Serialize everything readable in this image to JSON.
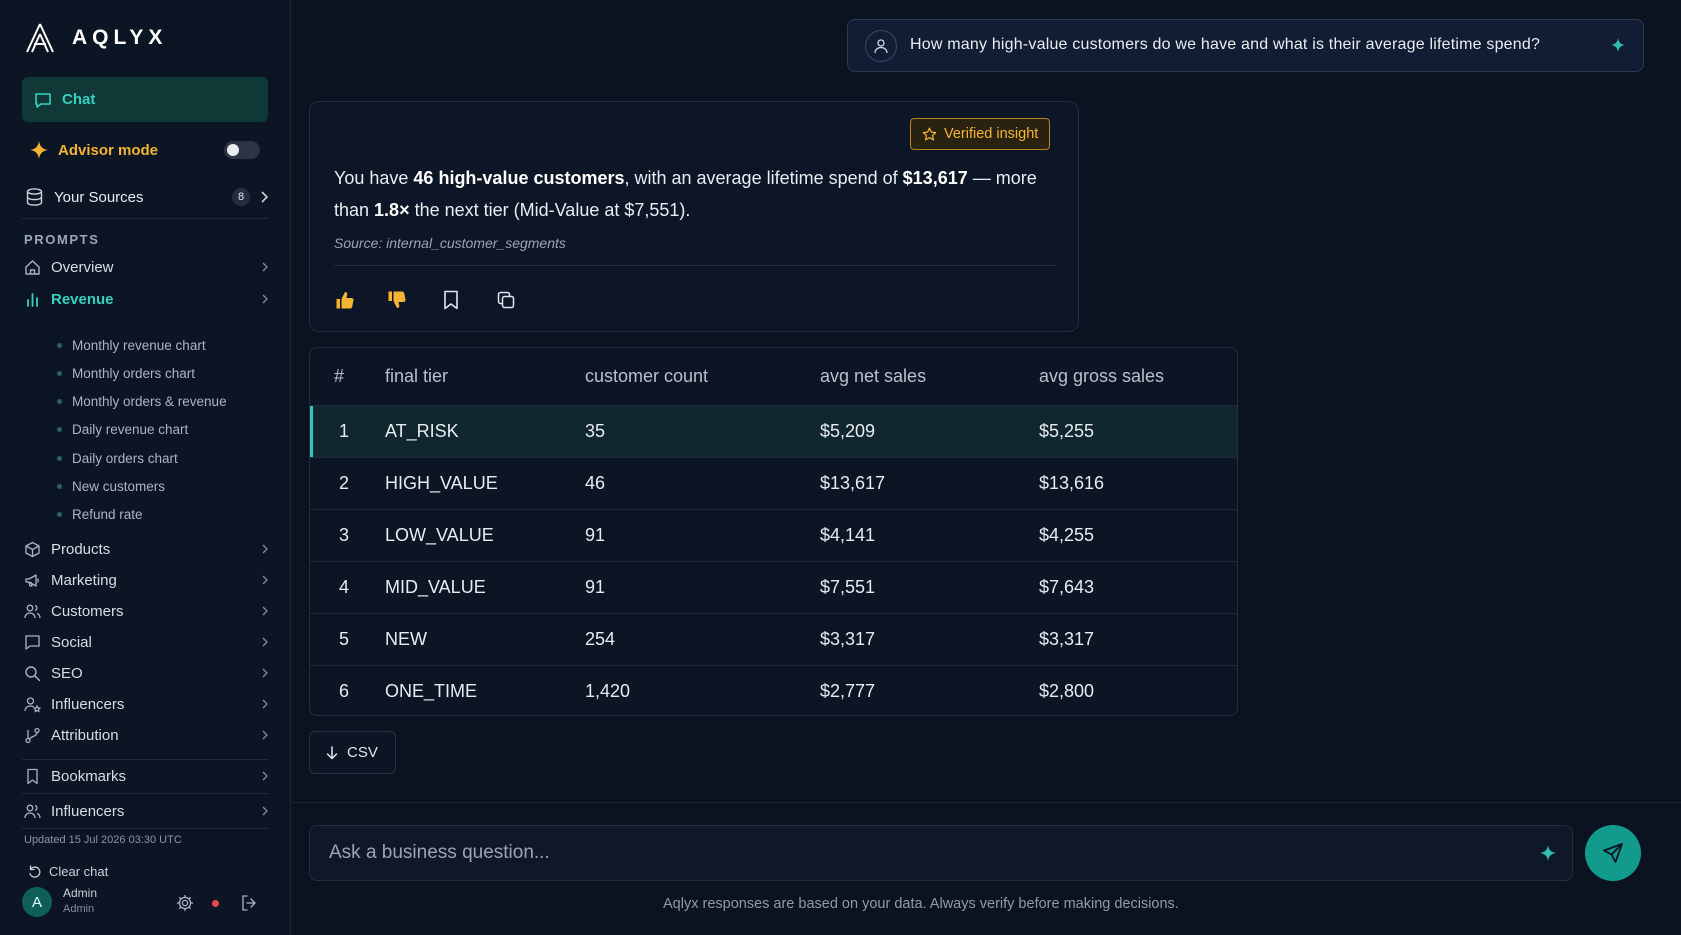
{
  "brand": {
    "name": "AQLYX"
  },
  "colors": {
    "accent": "#37d1c0",
    "advisor": "#f6b331",
    "verified": "#f2b534",
    "send": "#129a8c"
  },
  "sidebar": {
    "chat_label": "Chat",
    "advisor_label": "Advisor mode",
    "advisor_on": false,
    "sources_label": "Your Sources",
    "sources_count": "8",
    "prompts_title": "PROMPTS",
    "nav": [
      {
        "label": "Overview",
        "icon": "home-icon"
      },
      {
        "label": "Revenue",
        "icon": "bar-chart-icon"
      },
      {
        "label": "Products",
        "icon": "box-icon"
      },
      {
        "label": "Marketing",
        "icon": "megaphone-icon"
      },
      {
        "label": "Customers",
        "icon": "users-icon"
      },
      {
        "label": "Social",
        "icon": "message-square-icon"
      },
      {
        "label": "SEO",
        "icon": "search-icon"
      },
      {
        "label": "Influencers",
        "icon": "user-star-icon"
      },
      {
        "label": "Attribution",
        "icon": "branch-icon"
      }
    ],
    "revenue_sub": [
      "Monthly revenue chart",
      "Monthly orders chart",
      "Monthly orders & revenue",
      "Daily revenue chart",
      "Daily orders chart",
      "New customers",
      "Refund rate"
    ],
    "bookmarks_label": "Bookmarks",
    "influencers2_label": "Influencers",
    "updated": "Updated 15 Jul 2026 03:30 UTC",
    "clear_chat": "Clear chat",
    "user": {
      "initial": "A",
      "name": "Admin",
      "role": "Admin"
    }
  },
  "question": {
    "text": "How many high-value customers do we have and what is their average lifetime spend?"
  },
  "answer": {
    "verified_label": "Verified insight",
    "t1": "You have ",
    "b1": "46 high-value customers",
    "t2": ", with an average lifetime spend of ",
    "b2": "$13,617",
    "t3": " — more than ",
    "b3": "1.8×",
    "t4": " the next tier (Mid-Value at $7,551).",
    "source": "Source: internal_customer_segments"
  },
  "table": {
    "headers": [
      "#",
      "final tier",
      "customer count",
      "avg net sales",
      "avg gross sales"
    ],
    "rows": [
      [
        "1",
        "AT_RISK",
        "35",
        "$5,209",
        "$5,255"
      ],
      [
        "2",
        "HIGH_VALUE",
        "46",
        "$13,617",
        "$13,616"
      ],
      [
        "3",
        "LOW_VALUE",
        "91",
        "$4,141",
        "$4,255"
      ],
      [
        "4",
        "MID_VALUE",
        "91",
        "$7,551",
        "$7,643"
      ],
      [
        "5",
        "NEW",
        "254",
        "$3,317",
        "$3,317"
      ],
      [
        "6",
        "ONE_TIME",
        "1,420",
        "$2,777",
        "$2,800"
      ]
    ]
  },
  "csv_label": "CSV",
  "composer": {
    "placeholder": "Ask a business question..."
  },
  "disclaimer": "Aqlyx responses are based on your data. Always verify before making decisions."
}
